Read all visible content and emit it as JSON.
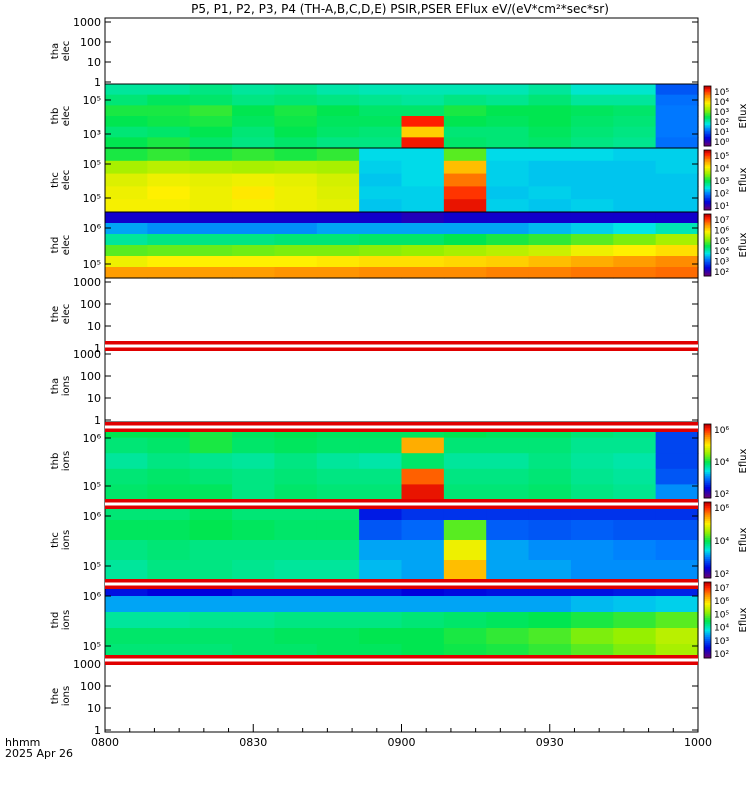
{
  "chart_data": {
    "type": "heatmap",
    "title": "P5, P1, P2, P3, P4 (TH-A,B,C,D,E) PSIR,PSER EFlux eV/(eV*cm²*sec*sr)",
    "x_label_top": "hhmm",
    "x_label_bottom": "2025 Apr 26",
    "x_ticks": [
      "0800",
      "0830",
      "0900",
      "0930",
      "1000"
    ],
    "x_range_minutes": [
      0,
      120
    ],
    "cols": 14,
    "colorbar_label": "Eflux",
    "panels": [
      {
        "name": "tha-elec",
        "ylabel": [
          "tha",
          "elec"
        ],
        "empty": true,
        "yticks": [
          "1000",
          "100",
          "10",
          "1"
        ]
      },
      {
        "name": "thb-elec",
        "ylabel": [
          "thb",
          "elec"
        ],
        "yticks": [
          "10⁵",
          "10³"
        ],
        "cbticks": [
          "10⁵",
          "10⁴",
          "10³",
          "10²",
          "10¹",
          "10⁰"
        ],
        "grid": [
          [
            0.42,
            0.42,
            0.44,
            0.42,
            0.43,
            0.41,
            0.4,
            0.4,
            0.4,
            0.4,
            0.42,
            0.38,
            0.38,
            0.22
          ],
          [
            0.45,
            0.47,
            0.46,
            0.44,
            0.45,
            0.44,
            0.43,
            0.42,
            0.44,
            0.43,
            0.45,
            0.42,
            0.42,
            0.25
          ],
          [
            0.5,
            0.5,
            0.52,
            0.48,
            0.5,
            0.48,
            0.46,
            0.46,
            0.5,
            0.48,
            0.48,
            0.47,
            0.46,
            0.26
          ],
          [
            0.48,
            0.49,
            0.5,
            0.47,
            0.49,
            0.47,
            0.47,
            0.94,
            0.48,
            0.47,
            0.48,
            0.46,
            0.45,
            0.26
          ],
          [
            0.45,
            0.46,
            0.48,
            0.45,
            0.48,
            0.46,
            0.45,
            0.76,
            0.45,
            0.45,
            0.47,
            0.45,
            0.44,
            0.26
          ],
          [
            0.48,
            0.5,
            0.46,
            0.44,
            0.46,
            0.44,
            0.44,
            0.95,
            0.46,
            0.45,
            0.46,
            0.44,
            0.43,
            0.25
          ]
        ]
      },
      {
        "name": "thc-elec",
        "ylabel": [
          "thc",
          "elec"
        ],
        "yticks": [
          "10⁵",
          "10⁵"
        ],
        "cbticks": [
          "10⁵",
          "10⁴",
          "10³",
          "10²",
          "10¹"
        ],
        "grid": [
          [
            0.5,
            0.52,
            0.5,
            0.52,
            0.5,
            0.52,
            0.35,
            0.35,
            0.55,
            0.35,
            0.35,
            0.35,
            0.34,
            0.34
          ],
          [
            0.62,
            0.64,
            0.63,
            0.62,
            0.63,
            0.62,
            0.34,
            0.35,
            0.78,
            0.34,
            0.33,
            0.33,
            0.33,
            0.34
          ],
          [
            0.68,
            0.7,
            0.69,
            0.7,
            0.69,
            0.67,
            0.33,
            0.35,
            0.86,
            0.34,
            0.33,
            0.33,
            0.33,
            0.33
          ],
          [
            0.7,
            0.72,
            0.7,
            0.73,
            0.7,
            0.68,
            0.34,
            0.34,
            0.92,
            0.33,
            0.34,
            0.33,
            0.33,
            0.33
          ],
          [
            0.71,
            0.71,
            0.7,
            0.71,
            0.7,
            0.69,
            0.33,
            0.34,
            0.96,
            0.34,
            0.33,
            0.34,
            0.33,
            0.33
          ]
        ]
      },
      {
        "name": "thd-elec",
        "ylabel": [
          "thd",
          "elec"
        ],
        "yticks": [
          "10⁶",
          "10⁵"
        ],
        "cbticks": [
          "10⁷",
          "10⁶",
          "10⁵",
          "10⁴",
          "10³",
          "10²"
        ],
        "grid": [
          [
            0.1,
            0.1,
            0.1,
            0.1,
            0.1,
            0.1,
            0.1,
            0.08,
            0.1,
            0.1,
            0.1,
            0.1,
            0.1,
            0.1
          ],
          [
            0.3,
            0.28,
            0.28,
            0.28,
            0.28,
            0.3,
            0.3,
            0.3,
            0.3,
            0.3,
            0.32,
            0.34,
            0.36,
            0.4
          ],
          [
            0.42,
            0.44,
            0.44,
            0.44,
            0.45,
            0.45,
            0.46,
            0.46,
            0.48,
            0.5,
            0.52,
            0.55,
            0.58,
            0.62
          ],
          [
            0.55,
            0.56,
            0.56,
            0.57,
            0.58,
            0.58,
            0.59,
            0.6,
            0.62,
            0.64,
            0.66,
            0.7,
            0.72,
            0.74
          ],
          [
            0.7,
            0.72,
            0.72,
            0.72,
            0.72,
            0.73,
            0.74,
            0.74,
            0.75,
            0.76,
            0.78,
            0.8,
            0.82,
            0.84
          ],
          [
            0.82,
            0.82,
            0.82,
            0.82,
            0.83,
            0.83,
            0.84,
            0.84,
            0.84,
            0.85,
            0.85,
            0.86,
            0.86,
            0.87
          ]
        ]
      },
      {
        "name": "the-elec",
        "ylabel": [
          "the",
          "elec"
        ],
        "empty": true,
        "yticks": [
          "1000",
          "100",
          "10",
          "1"
        ]
      },
      {
        "name": "tha-ions",
        "ylabel": [
          "tha",
          "ions"
        ],
        "empty": true,
        "yticks": [
          "1000",
          "100",
          "10",
          "1"
        ]
      },
      {
        "name": "thb-ions",
        "ylabel": [
          "thb",
          "ions"
        ],
        "yticks": [
          "10⁶",
          "10⁵"
        ],
        "cbticks": [
          "10⁶",
          "10⁴",
          "10²"
        ],
        "grid": [
          [
            0.48,
            0.48,
            0.5,
            0.47,
            0.48,
            0.47,
            0.47,
            0.47,
            0.48,
            0.47,
            0.47,
            0.45,
            0.44,
            0.2
          ],
          [
            0.45,
            0.46,
            0.5,
            0.46,
            0.47,
            0.46,
            0.46,
            0.8,
            0.45,
            0.45,
            0.45,
            0.43,
            0.43,
            0.2
          ],
          [
            0.42,
            0.44,
            0.43,
            0.42,
            0.44,
            0.42,
            0.41,
            0.46,
            0.42,
            0.42,
            0.44,
            0.42,
            0.41,
            0.2
          ],
          [
            0.45,
            0.46,
            0.45,
            0.44,
            0.45,
            0.44,
            0.44,
            0.88,
            0.44,
            0.44,
            0.45,
            0.43,
            0.42,
            0.22
          ],
          [
            0.46,
            0.47,
            0.47,
            0.44,
            0.46,
            0.45,
            0.45,
            0.96,
            0.45,
            0.45,
            0.46,
            0.44,
            0.43,
            0.28
          ]
        ]
      },
      {
        "name": "thc-ions",
        "ylabel": [
          "thc",
          "ions"
        ],
        "yticks": [
          "10⁶",
          "10⁵"
        ],
        "cbticks": [
          "10⁶",
          "10⁴",
          "10²"
        ],
        "grid": [
          [
            0.45,
            0.45,
            0.47,
            0.45,
            0.45,
            0.45,
            0.15,
            0.18,
            0.18,
            0.18,
            0.18,
            0.18,
            0.18,
            0.18
          ],
          [
            0.47,
            0.47,
            0.48,
            0.47,
            0.46,
            0.46,
            0.22,
            0.24,
            0.55,
            0.23,
            0.22,
            0.23,
            0.22,
            0.22
          ],
          [
            0.44,
            0.45,
            0.44,
            0.44,
            0.44,
            0.44,
            0.3,
            0.3,
            0.7,
            0.3,
            0.28,
            0.28,
            0.27,
            0.26
          ],
          [
            0.42,
            0.44,
            0.44,
            0.43,
            0.42,
            0.42,
            0.32,
            0.3,
            0.78,
            0.3,
            0.3,
            0.28,
            0.28,
            0.28
          ]
        ]
      },
      {
        "name": "thd-ions",
        "ylabel": [
          "thd",
          "ions"
        ],
        "yticks": [
          "10⁶",
          "10⁵"
        ],
        "cbticks": [
          "10⁷",
          "10⁶",
          "10⁵",
          "10⁴",
          "10³",
          "10²"
        ],
        "grid": [
          [
            0.14,
            0.12,
            0.12,
            0.14,
            0.14,
            0.14,
            0.14,
            0.12,
            0.13,
            0.14,
            0.14,
            0.14,
            0.15,
            0.16
          ],
          [
            0.3,
            0.3,
            0.3,
            0.3,
            0.3,
            0.3,
            0.3,
            0.3,
            0.3,
            0.3,
            0.3,
            0.32,
            0.33,
            0.34
          ],
          [
            0.42,
            0.42,
            0.43,
            0.43,
            0.44,
            0.44,
            0.44,
            0.45,
            0.46,
            0.47,
            0.48,
            0.5,
            0.52,
            0.55
          ],
          [
            0.46,
            0.46,
            0.46,
            0.46,
            0.47,
            0.47,
            0.48,
            0.48,
            0.5,
            0.52,
            0.54,
            0.58,
            0.6,
            0.64
          ],
          [
            0.45,
            0.45,
            0.45,
            0.46,
            0.46,
            0.47,
            0.47,
            0.48,
            0.49,
            0.5,
            0.52,
            0.55,
            0.58,
            0.62
          ]
        ]
      },
      {
        "name": "the-ions",
        "ylabel": [
          "the",
          "ions"
        ],
        "empty": true,
        "yticks": [
          "1000",
          "100",
          "10",
          "1"
        ]
      }
    ]
  }
}
